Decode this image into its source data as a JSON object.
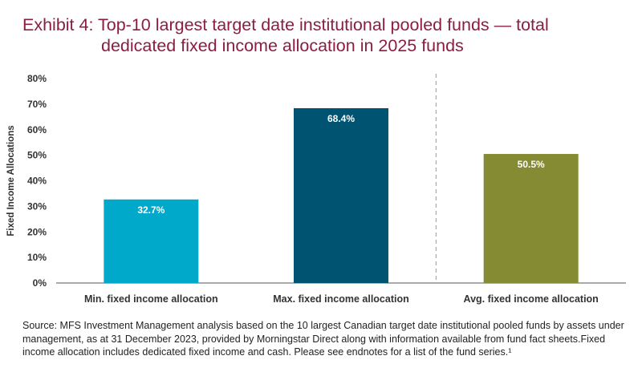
{
  "title_line1": "Exhibit 4: Top-10 largest target date institutional pooled funds — total",
  "title_line2": "dedicated fixed income allocation in 2025 funds",
  "source_note": "Source: MFS Investment Management analysis based on the 10 largest Canadian target date institutional pooled funds by assets under management, as at 31 December 2023, provided by Morningstar Direct along with information available from fund fact sheets.Fixed income allocation includes dedicated fixed income and cash. Please see endnotes for a list of the fund series.¹",
  "colors": {
    "title": "#8c1d40",
    "min_bar": "#00a9c9",
    "max_bar": "#005472",
    "avg_bar": "#848b33",
    "divider": "#999999"
  },
  "chart_data": {
    "type": "bar",
    "ylabel": "Fixed Income Allocations",
    "ylim": [
      0,
      80
    ],
    "yticks": [
      "0%",
      "10%",
      "20%",
      "30%",
      "40%",
      "50%",
      "60%",
      "70%",
      "80%"
    ],
    "grid": false,
    "categories": [
      "Min. fixed income allocation",
      "Max. fixed income allocation",
      "Avg. fixed income allocation"
    ],
    "values": [
      32.7,
      68.4,
      50.5
    ],
    "labels": [
      "32.7%",
      "68.4%",
      "50.5%"
    ],
    "divider_after_category": 2
  }
}
